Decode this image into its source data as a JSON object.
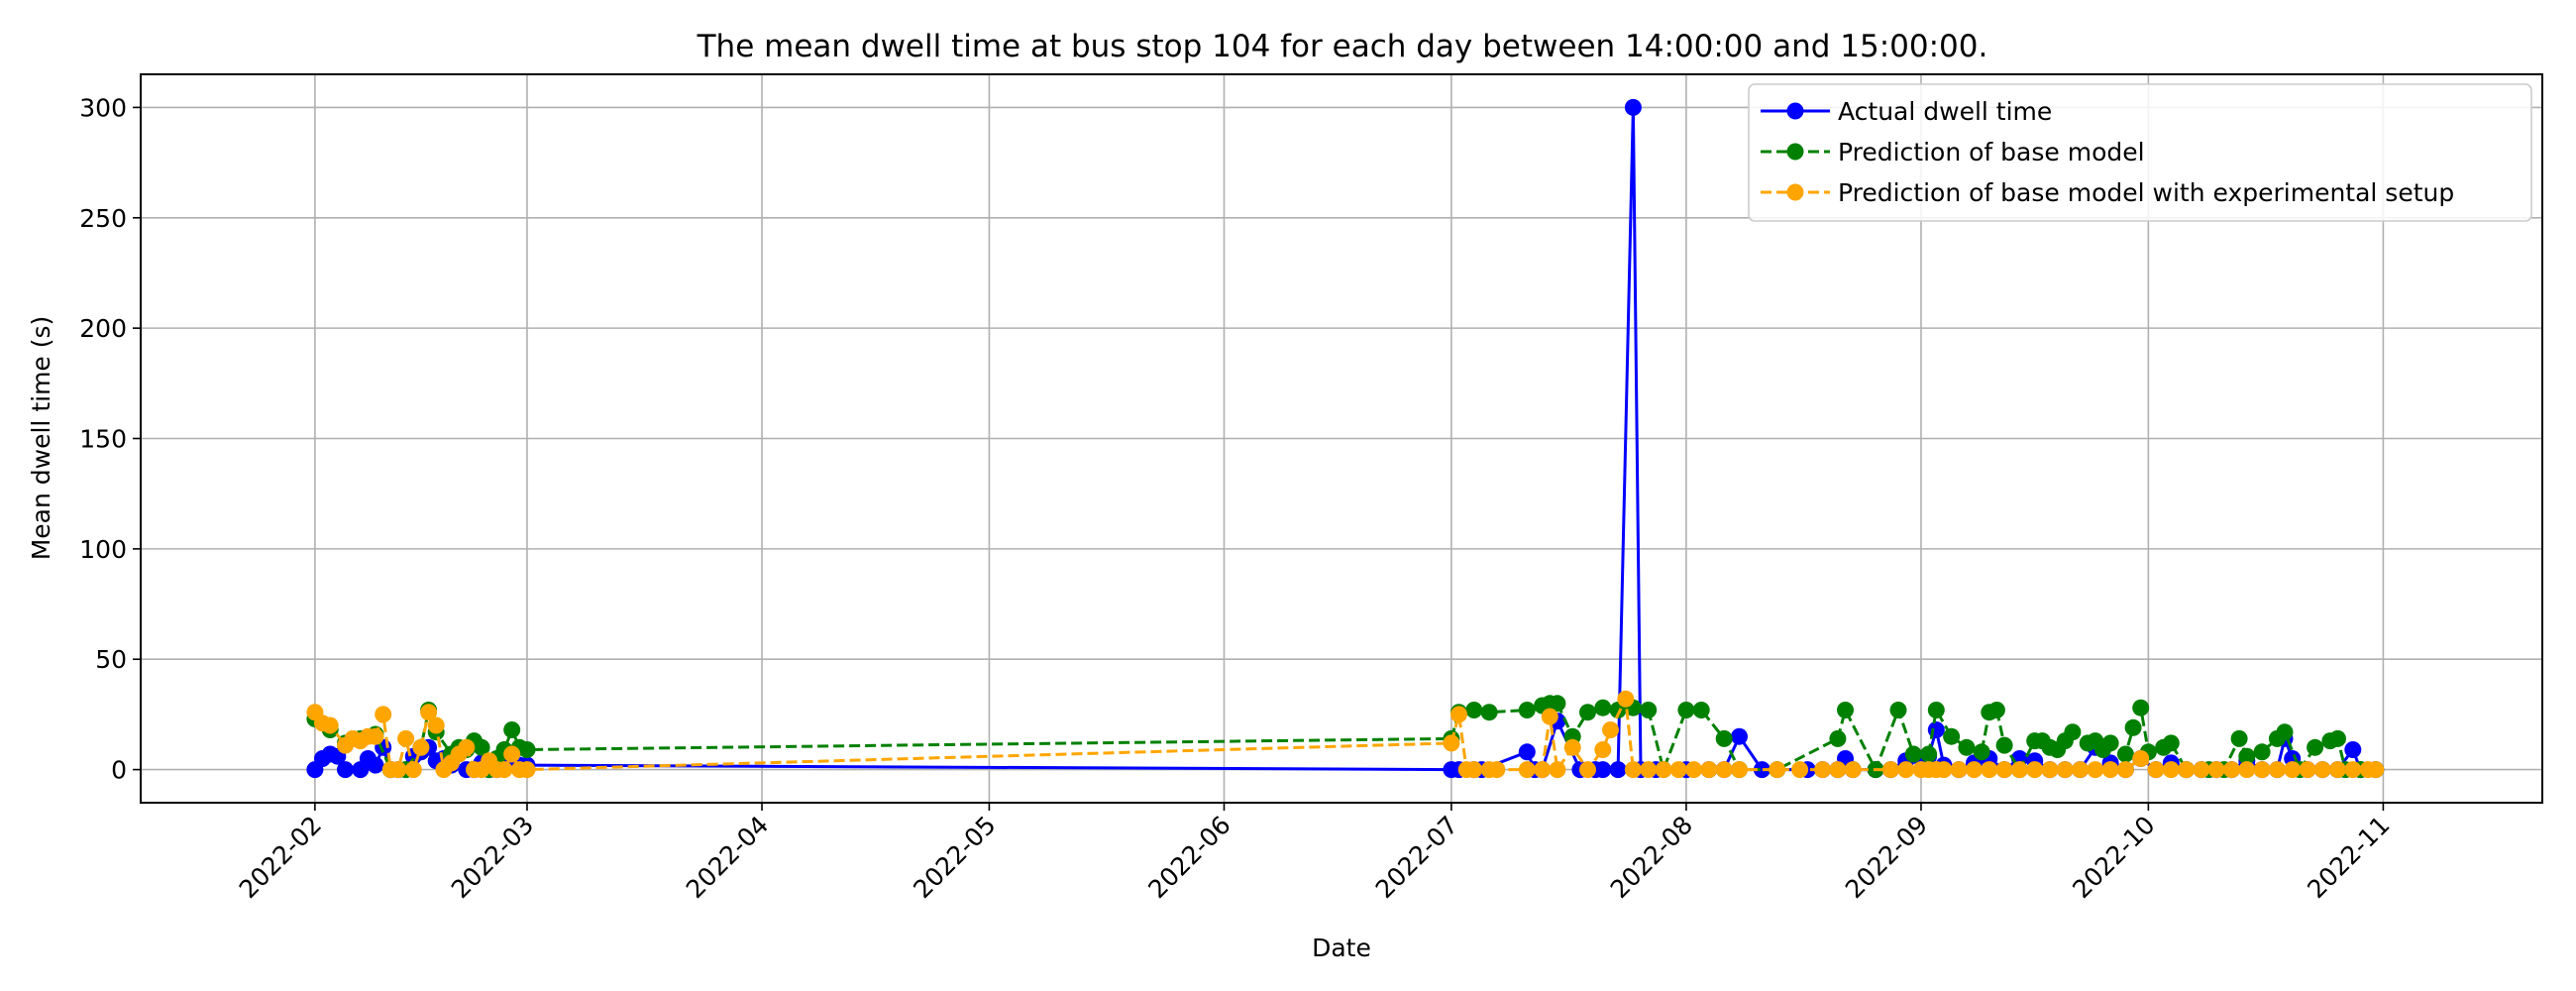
{
  "chart_data": {
    "type": "line",
    "title": "The mean dwell time at bus stop 104 for each day between 14:00:00 and 15:00:00.",
    "xlabel": "Date",
    "ylabel": "Mean dwell time (s)",
    "xlim": [
      "2022-01-09",
      "2022-11-22"
    ],
    "ylim": [
      -15,
      315
    ],
    "x_ticks": [
      "2022-02-01",
      "2022-03-01",
      "2022-04-01",
      "2022-05-01",
      "2022-06-01",
      "2022-07-01",
      "2022-08-01",
      "2022-09-01",
      "2022-10-01",
      "2022-11-01"
    ],
    "x_tick_labels": [
      "2022-02",
      "2022-03",
      "2022-04",
      "2022-05",
      "2022-06",
      "2022-07",
      "2022-08",
      "2022-09",
      "2022-10",
      "2022-11"
    ],
    "y_ticks": [
      0,
      50,
      100,
      150,
      200,
      250,
      300
    ],
    "grid": true,
    "legend_position": "top-right",
    "series": [
      {
        "name": "Actual dwell time",
        "color": "#0000ff",
        "linestyle": "solid",
        "marker": "circle",
        "points": [
          [
            "2022-02-01",
            0
          ],
          [
            "2022-02-02",
            5
          ],
          [
            "2022-02-03",
            7
          ],
          [
            "2022-02-04",
            6
          ],
          [
            "2022-02-05",
            0
          ],
          [
            "2022-02-07",
            0
          ],
          [
            "2022-02-08",
            5
          ],
          [
            "2022-02-09",
            2
          ],
          [
            "2022-02-10",
            10
          ],
          [
            "2022-02-11",
            0
          ],
          [
            "2022-02-12",
            0
          ],
          [
            "2022-02-14",
            6
          ],
          [
            "2022-02-15",
            8
          ],
          [
            "2022-02-16",
            10
          ],
          [
            "2022-02-17",
            4
          ],
          [
            "2022-02-18",
            5
          ],
          [
            "2022-02-19",
            2
          ],
          [
            "2022-02-21",
            0
          ],
          [
            "2022-02-22",
            0
          ],
          [
            "2022-02-23",
            3
          ],
          [
            "2022-02-24",
            0
          ],
          [
            "2022-02-25",
            0
          ],
          [
            "2022-02-26",
            2
          ],
          [
            "2022-02-28",
            2
          ],
          [
            "2022-03-01",
            2
          ],
          [
            "2022-07-01",
            0
          ],
          [
            "2022-07-02",
            0
          ],
          [
            "2022-07-04",
            0
          ],
          [
            "2022-07-05",
            0
          ],
          [
            "2022-07-11",
            8
          ],
          [
            "2022-07-12",
            0
          ],
          [
            "2022-07-13",
            0
          ],
          [
            "2022-07-15",
            22
          ],
          [
            "2022-07-18",
            0
          ],
          [
            "2022-07-20",
            0
          ],
          [
            "2022-07-21",
            0
          ],
          [
            "2022-07-23",
            0
          ],
          [
            "2022-07-25",
            300
          ],
          [
            "2022-07-26",
            0
          ],
          [
            "2022-07-28",
            0
          ],
          [
            "2022-08-01",
            0
          ],
          [
            "2022-08-04",
            0
          ],
          [
            "2022-08-06",
            0
          ],
          [
            "2022-08-08",
            15
          ],
          [
            "2022-08-11",
            0
          ],
          [
            "2022-08-17",
            0
          ],
          [
            "2022-08-19",
            0
          ],
          [
            "2022-08-21",
            0
          ],
          [
            "2022-08-22",
            5
          ],
          [
            "2022-08-23",
            0
          ],
          [
            "2022-08-26",
            0
          ],
          [
            "2022-08-28",
            0
          ],
          [
            "2022-08-30",
            4
          ],
          [
            "2022-09-01",
            5
          ],
          [
            "2022-09-02",
            6
          ],
          [
            "2022-09-03",
            18
          ],
          [
            "2022-09-04",
            2
          ],
          [
            "2022-09-06",
            0
          ],
          [
            "2022-09-08",
            3
          ],
          [
            "2022-09-10",
            5
          ],
          [
            "2022-09-12",
            0
          ],
          [
            "2022-09-14",
            5
          ],
          [
            "2022-09-16",
            4
          ],
          [
            "2022-09-18",
            0
          ],
          [
            "2022-09-20",
            0
          ],
          [
            "2022-09-22",
            0
          ],
          [
            "2022-09-24",
            10
          ],
          [
            "2022-09-26",
            3
          ],
          [
            "2022-09-28",
            0
          ],
          [
            "2022-09-30",
            5
          ],
          [
            "2022-10-02",
            0
          ],
          [
            "2022-10-04",
            3
          ],
          [
            "2022-10-06",
            0
          ],
          [
            "2022-10-08",
            0
          ],
          [
            "2022-10-10",
            0
          ],
          [
            "2022-10-12",
            0
          ],
          [
            "2022-10-14",
            4
          ],
          [
            "2022-10-16",
            0
          ],
          [
            "2022-10-18",
            0
          ],
          [
            "2022-10-19",
            14
          ],
          [
            "2022-10-20",
            5
          ],
          [
            "2022-10-22",
            0
          ],
          [
            "2022-10-24",
            0
          ],
          [
            "2022-10-26",
            0
          ],
          [
            "2022-10-28",
            9
          ],
          [
            "2022-10-29",
            0
          ],
          [
            "2022-10-31",
            0
          ]
        ]
      },
      {
        "name": "Prediction of base model",
        "color": "#008000",
        "linestyle": "dashed",
        "marker": "circle",
        "points": [
          [
            "2022-02-01",
            23
          ],
          [
            "2022-02-03",
            18
          ],
          [
            "2022-02-05",
            12
          ],
          [
            "2022-02-07",
            14
          ],
          [
            "2022-02-09",
            16
          ],
          [
            "2022-02-11",
            0
          ],
          [
            "2022-02-13",
            0
          ],
          [
            "2022-02-15",
            10
          ],
          [
            "2022-02-16",
            27
          ],
          [
            "2022-02-17",
            17
          ],
          [
            "2022-02-19",
            7
          ],
          [
            "2022-02-20",
            10
          ],
          [
            "2022-02-21",
            9
          ],
          [
            "2022-02-22",
            13
          ],
          [
            "2022-02-23",
            10
          ],
          [
            "2022-02-24",
            0
          ],
          [
            "2022-02-25",
            5
          ],
          [
            "2022-02-26",
            9
          ],
          [
            "2022-02-27",
            18
          ],
          [
            "2022-02-28",
            10
          ],
          [
            "2022-03-01",
            9
          ],
          [
            "2022-07-01",
            14
          ],
          [
            "2022-07-02",
            26
          ],
          [
            "2022-07-04",
            27
          ],
          [
            "2022-07-06",
            26
          ],
          [
            "2022-07-11",
            27
          ],
          [
            "2022-07-13",
            29
          ],
          [
            "2022-07-14",
            30
          ],
          [
            "2022-07-15",
            30
          ],
          [
            "2022-07-17",
            15
          ],
          [
            "2022-07-19",
            26
          ],
          [
            "2022-07-21",
            28
          ],
          [
            "2022-07-23",
            27
          ],
          [
            "2022-07-25",
            28
          ],
          [
            "2022-07-27",
            27
          ],
          [
            "2022-07-29",
            0
          ],
          [
            "2022-08-01",
            27
          ],
          [
            "2022-08-03",
            27
          ],
          [
            "2022-08-06",
            14
          ],
          [
            "2022-08-08",
            0
          ],
          [
            "2022-08-13",
            0
          ],
          [
            "2022-08-21",
            14
          ],
          [
            "2022-08-22",
            27
          ],
          [
            "2022-08-26",
            0
          ],
          [
            "2022-08-29",
            27
          ],
          [
            "2022-08-31",
            7
          ],
          [
            "2022-09-02",
            7
          ],
          [
            "2022-09-03",
            27
          ],
          [
            "2022-09-05",
            15
          ],
          [
            "2022-09-07",
            10
          ],
          [
            "2022-09-09",
            8
          ],
          [
            "2022-09-10",
            26
          ],
          [
            "2022-09-11",
            27
          ],
          [
            "2022-09-12",
            11
          ],
          [
            "2022-09-14",
            0
          ],
          [
            "2022-09-16",
            13
          ],
          [
            "2022-09-17",
            13
          ],
          [
            "2022-09-18",
            10
          ],
          [
            "2022-09-19",
            9
          ],
          [
            "2022-09-20",
            13
          ],
          [
            "2022-09-21",
            17
          ],
          [
            "2022-09-23",
            12
          ],
          [
            "2022-09-24",
            13
          ],
          [
            "2022-09-25",
            9
          ],
          [
            "2022-09-26",
            12
          ],
          [
            "2022-09-28",
            7
          ],
          [
            "2022-09-29",
            19
          ],
          [
            "2022-09-30",
            28
          ],
          [
            "2022-10-01",
            8
          ],
          [
            "2022-10-03",
            10
          ],
          [
            "2022-10-04",
            12
          ],
          [
            "2022-10-06",
            0
          ],
          [
            "2022-10-09",
            0
          ],
          [
            "2022-10-11",
            0
          ],
          [
            "2022-10-13",
            14
          ],
          [
            "2022-10-14",
            6
          ],
          [
            "2022-10-16",
            8
          ],
          [
            "2022-10-18",
            14
          ],
          [
            "2022-10-19",
            17
          ],
          [
            "2022-10-21",
            0
          ],
          [
            "2022-10-23",
            10
          ],
          [
            "2022-10-25",
            13
          ],
          [
            "2022-10-26",
            14
          ],
          [
            "2022-10-27",
            0
          ],
          [
            "2022-10-29",
            0
          ],
          [
            "2022-10-31",
            0
          ]
        ]
      },
      {
        "name": "Prediction of base model with experimental setup",
        "color": "#ffa500",
        "linestyle": "dashed",
        "marker": "circle",
        "points": [
          [
            "2022-02-01",
            26
          ],
          [
            "2022-02-02",
            21
          ],
          [
            "2022-02-03",
            20
          ],
          [
            "2022-02-05",
            11
          ],
          [
            "2022-02-06",
            14
          ],
          [
            "2022-02-07",
            13
          ],
          [
            "2022-02-08",
            15
          ],
          [
            "2022-02-09",
            15
          ],
          [
            "2022-02-10",
            25
          ],
          [
            "2022-02-11",
            0
          ],
          [
            "2022-02-12",
            0
          ],
          [
            "2022-02-13",
            14
          ],
          [
            "2022-02-14",
            0
          ],
          [
            "2022-02-15",
            10
          ],
          [
            "2022-02-16",
            26
          ],
          [
            "2022-02-17",
            20
          ],
          [
            "2022-02-18",
            0
          ],
          [
            "2022-02-19",
            3
          ],
          [
            "2022-02-20",
            7
          ],
          [
            "2022-02-21",
            10
          ],
          [
            "2022-02-22",
            0
          ],
          [
            "2022-02-23",
            0
          ],
          [
            "2022-02-24",
            4
          ],
          [
            "2022-02-25",
            0
          ],
          [
            "2022-02-26",
            0
          ],
          [
            "2022-02-27",
            7
          ],
          [
            "2022-02-28",
            0
          ],
          [
            "2022-03-01",
            0
          ],
          [
            "2022-07-01",
            12
          ],
          [
            "2022-07-02",
            25
          ],
          [
            "2022-07-03",
            0
          ],
          [
            "2022-07-04",
            0
          ],
          [
            "2022-07-06",
            0
          ],
          [
            "2022-07-07",
            0
          ],
          [
            "2022-07-11",
            0
          ],
          [
            "2022-07-13",
            0
          ],
          [
            "2022-07-14",
            24
          ],
          [
            "2022-07-15",
            0
          ],
          [
            "2022-07-17",
            10
          ],
          [
            "2022-07-19",
            0
          ],
          [
            "2022-07-21",
            9
          ],
          [
            "2022-07-22",
            18
          ],
          [
            "2022-07-24",
            32
          ],
          [
            "2022-07-25",
            0
          ],
          [
            "2022-07-27",
            0
          ],
          [
            "2022-07-29",
            0
          ],
          [
            "2022-07-31",
            0
          ],
          [
            "2022-08-02",
            0
          ],
          [
            "2022-08-04",
            0
          ],
          [
            "2022-08-06",
            0
          ],
          [
            "2022-08-08",
            0
          ],
          [
            "2022-08-13",
            0
          ],
          [
            "2022-08-16",
            0
          ],
          [
            "2022-08-19",
            0
          ],
          [
            "2022-08-21",
            0
          ],
          [
            "2022-08-23",
            0
          ],
          [
            "2022-08-28",
            0
          ],
          [
            "2022-08-30",
            0
          ],
          [
            "2022-09-01",
            0
          ],
          [
            "2022-09-02",
            0
          ],
          [
            "2022-09-03",
            0
          ],
          [
            "2022-09-04",
            0
          ],
          [
            "2022-09-06",
            0
          ],
          [
            "2022-09-08",
            0
          ],
          [
            "2022-09-10",
            0
          ],
          [
            "2022-09-12",
            0
          ],
          [
            "2022-09-14",
            0
          ],
          [
            "2022-09-16",
            0
          ],
          [
            "2022-09-18",
            0
          ],
          [
            "2022-09-20",
            0
          ],
          [
            "2022-09-22",
            0
          ],
          [
            "2022-09-24",
            0
          ],
          [
            "2022-09-26",
            0
          ],
          [
            "2022-09-28",
            0
          ],
          [
            "2022-09-30",
            5
          ],
          [
            "2022-10-02",
            0
          ],
          [
            "2022-10-04",
            0
          ],
          [
            "2022-10-06",
            0
          ],
          [
            "2022-10-08",
            0
          ],
          [
            "2022-10-10",
            0
          ],
          [
            "2022-10-12",
            0
          ],
          [
            "2022-10-14",
            0
          ],
          [
            "2022-10-16",
            0
          ],
          [
            "2022-10-18",
            0
          ],
          [
            "2022-10-20",
            0
          ],
          [
            "2022-10-22",
            0
          ],
          [
            "2022-10-24",
            0
          ],
          [
            "2022-10-26",
            0
          ],
          [
            "2022-10-28",
            0
          ],
          [
            "2022-10-30",
            0
          ],
          [
            "2022-10-31",
            0
          ]
        ]
      }
    ]
  }
}
